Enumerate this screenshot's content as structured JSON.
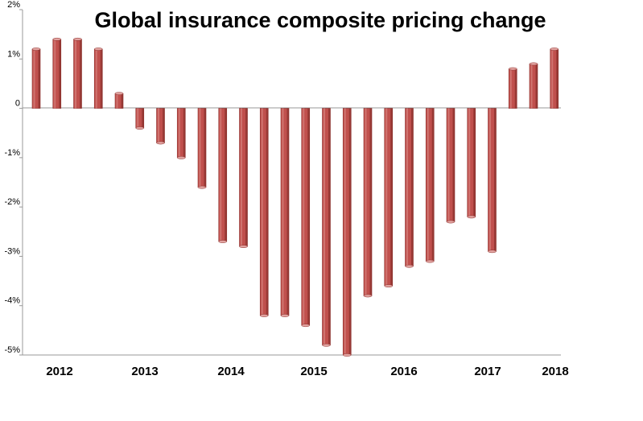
{
  "chart_data": {
    "type": "bar",
    "title": "Global insurance composite pricing change",
    "xlabel": "",
    "ylabel": "",
    "y_tick_labels": [
      "2%",
      "1%",
      "0",
      "-1%",
      "-2%",
      "-3%",
      "-4%",
      "-5%"
    ],
    "x_tick_labels": [
      "2012",
      "2013",
      "2014",
      "2015",
      "2016",
      "2017",
      "2018"
    ],
    "ylim": [
      -5,
      2
    ],
    "grid": false,
    "legend": "none",
    "bar_color": "#c0504d",
    "series": [
      {
        "values": [
          1.2,
          1.4,
          1.4,
          1.2,
          0.3,
          -0.4,
          -0.7,
          -1.0,
          -1.6,
          -2.7,
          -2.8,
          -4.2,
          -4.2,
          -4.4,
          -4.8,
          -5.0,
          -3.8,
          -3.6,
          -3.2,
          -3.1,
          -2.3,
          -2.2,
          -2.9,
          0.8,
          0.9,
          1.2
        ]
      }
    ]
  }
}
